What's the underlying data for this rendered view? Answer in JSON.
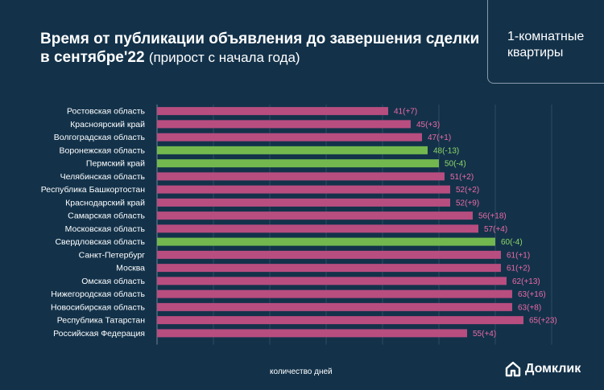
{
  "title": {
    "main": "Время от публикации объявления до завершения сделки в сентябре'22",
    "sub": "(прирост с начала года)"
  },
  "segment": "1-комнатные квартиры",
  "brand": "Домклик",
  "colors": {
    "background": "#13324a",
    "increase": "#b84d80",
    "decrease": "#72b84f",
    "label_increase": "#ec6aa4",
    "label_decrease": "#8fd666",
    "grid": "#2e4a60"
  },
  "chart_data": {
    "type": "bar",
    "orientation": "horizontal",
    "xlabel": "количество дней",
    "xlim": [
      0,
      70
    ],
    "grid": true,
    "categories": [
      "Ростовская область",
      "Красноярский край",
      "Волгоградская область",
      "Воронежская область",
      "Пермский край",
      "Челябинская область",
      "Республика Башкортостан",
      "Краснодарский край",
      "Самарская область",
      "Московская область",
      "Свердловская область",
      "Санкт-Петербург",
      "Москва",
      "Омская область",
      "Нижегородская область",
      "Новосибирская область",
      "Республика Татарстан",
      "Российская Федерация"
    ],
    "values": [
      41,
      45,
      47,
      48,
      50,
      51,
      52,
      52,
      56,
      57,
      60,
      61,
      61,
      62,
      63,
      63,
      65,
      55
    ],
    "labels": [
      "41(+7)",
      "45(+3)",
      "47(+1)",
      "48(-13)",
      "50(-4)",
      "51(+2)",
      "52(+2)",
      "52(+9)",
      "56(+18)",
      "57(+4)",
      "60(-4)",
      "61(+1)",
      "61(+2)",
      "62(+13)",
      "63(+16)",
      "63(+8)",
      "65(+23)",
      "55(+4)"
    ],
    "change": [
      7,
      3,
      1,
      -13,
      -4,
      2,
      2,
      9,
      18,
      4,
      -4,
      1,
      2,
      13,
      16,
      8,
      23,
      4
    ]
  }
}
